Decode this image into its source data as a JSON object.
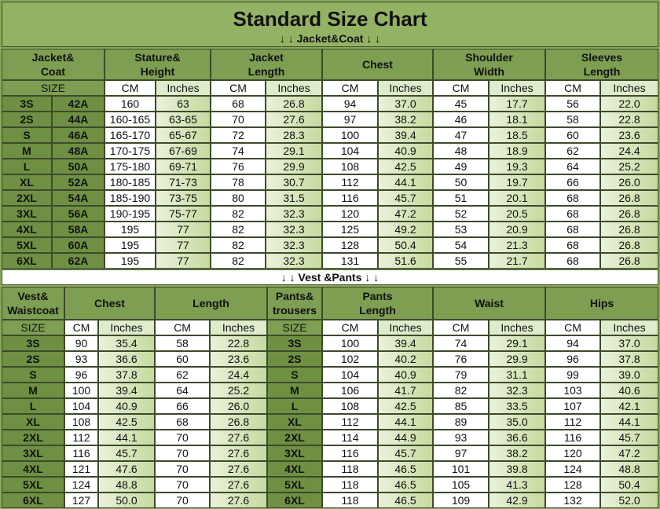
{
  "title": "Standard Size Chart",
  "jacket": {
    "banner": "↓ ↓  Jacket&Coat  ↓ ↓",
    "headers": [
      [
        "Jacket&",
        "Coat"
      ],
      [
        "Stature&",
        "Height"
      ],
      [
        "Jacket",
        "Length"
      ],
      [
        "Chest"
      ],
      [
        "Shoulder",
        "Width"
      ],
      [
        "Sleeves",
        "Length"
      ]
    ],
    "units": [
      "SIZE",
      "CM",
      "Inches",
      "CM",
      "Inches",
      "CM",
      "Inches",
      "CM",
      "Inches",
      "CM",
      "Inches"
    ],
    "rows": [
      [
        "3S",
        "42A",
        "160",
        "63",
        "68",
        "26.8",
        "94",
        "37.0",
        "45",
        "17.7",
        "56",
        "22.0"
      ],
      [
        "2S",
        "44A",
        "160-165",
        "63-65",
        "70",
        "27.6",
        "97",
        "38.2",
        "46",
        "18.1",
        "58",
        "22.8"
      ],
      [
        "S",
        "46A",
        "165-170",
        "65-67",
        "72",
        "28.3",
        "100",
        "39.4",
        "47",
        "18.5",
        "60",
        "23.6"
      ],
      [
        "M",
        "48A",
        "170-175",
        "67-69",
        "74",
        "29.1",
        "104",
        "40.9",
        "48",
        "18.9",
        "62",
        "24.4"
      ],
      [
        "L",
        "50A",
        "175-180",
        "69-71",
        "76",
        "29.9",
        "108",
        "42.5",
        "49",
        "19.3",
        "64",
        "25.2"
      ],
      [
        "XL",
        "52A",
        "180-185",
        "71-73",
        "78",
        "30.7",
        "112",
        "44.1",
        "50",
        "19.7",
        "66",
        "26.0"
      ],
      [
        "2XL",
        "54A",
        "185-190",
        "73-75",
        "80",
        "31.5",
        "116",
        "45.7",
        "51",
        "20.1",
        "68",
        "26.8"
      ],
      [
        "3XL",
        "56A",
        "190-195",
        "75-77",
        "82",
        "32.3",
        "120",
        "47.2",
        "52",
        "20.5",
        "68",
        "26.8"
      ],
      [
        "4XL",
        "58A",
        "195",
        "77",
        "82",
        "32.3",
        "125",
        "49.2",
        "53",
        "20.9",
        "68",
        "26.8"
      ],
      [
        "5XL",
        "60A",
        "195",
        "77",
        "82",
        "32.3",
        "128",
        "50.4",
        "54",
        "21.3",
        "68",
        "26.8"
      ],
      [
        "6XL",
        "62A",
        "195",
        "77",
        "82",
        "32.3",
        "131",
        "51.6",
        "55",
        "21.7",
        "68",
        "26.8"
      ]
    ]
  },
  "vest": {
    "banner": "↓ ↓  Vest &Pants ↓ ↓",
    "headers": [
      [
        "Vest&",
        "Waistcoat"
      ],
      [
        "Chest"
      ],
      [
        "Length"
      ],
      [
        "Pants&",
        "trousers"
      ],
      [
        "Pants",
        "Length"
      ],
      [
        "Waist"
      ],
      [
        "Hips"
      ]
    ],
    "units": [
      "SIZE",
      "CM",
      "Inches",
      "CM",
      "Inches",
      "SIZE",
      "CM",
      "Inches",
      "CM",
      "Inches",
      "CM",
      "Inches"
    ],
    "rows": [
      [
        "3S",
        "90",
        "35.4",
        "58",
        "22.8",
        "3S",
        "100",
        "39.4",
        "74",
        "29.1",
        "94",
        "37.0"
      ],
      [
        "2S",
        "93",
        "36.6",
        "60",
        "23.6",
        "2S",
        "102",
        "40.2",
        "76",
        "29.9",
        "96",
        "37.8"
      ],
      [
        "S",
        "96",
        "37.8",
        "62",
        "24.4",
        "S",
        "104",
        "40.9",
        "79",
        "31.1",
        "99",
        "39.0"
      ],
      [
        "M",
        "100",
        "39.4",
        "64",
        "25.2",
        "M",
        "106",
        "41.7",
        "82",
        "32.3",
        "103",
        "40.6"
      ],
      [
        "L",
        "104",
        "40.9",
        "66",
        "26.0",
        "L",
        "108",
        "42.5",
        "85",
        "33.5",
        "107",
        "42.1"
      ],
      [
        "XL",
        "108",
        "42.5",
        "68",
        "26.8",
        "XL",
        "112",
        "44.1",
        "89",
        "35.0",
        "112",
        "44.1"
      ],
      [
        "2XL",
        "112",
        "44.1",
        "70",
        "27.6",
        "2XL",
        "114",
        "44.9",
        "93",
        "36.6",
        "116",
        "45.7"
      ],
      [
        "3XL",
        "116",
        "45.7",
        "70",
        "27.6",
        "3XL",
        "116",
        "45.7",
        "97",
        "38.2",
        "120",
        "47.2"
      ],
      [
        "4XL",
        "121",
        "47.6",
        "70",
        "27.6",
        "4XL",
        "118",
        "46.5",
        "101",
        "39.8",
        "124",
        "48.8"
      ],
      [
        "5XL",
        "124",
        "48.8",
        "70",
        "27.6",
        "5XL",
        "118",
        "46.5",
        "105",
        "41.3",
        "128",
        "50.4"
      ],
      [
        "6XL",
        "127",
        "50.0",
        "70",
        "27.6",
        "6XL",
        "118",
        "46.5",
        "109",
        "42.9",
        "132",
        "52.0"
      ]
    ]
  }
}
